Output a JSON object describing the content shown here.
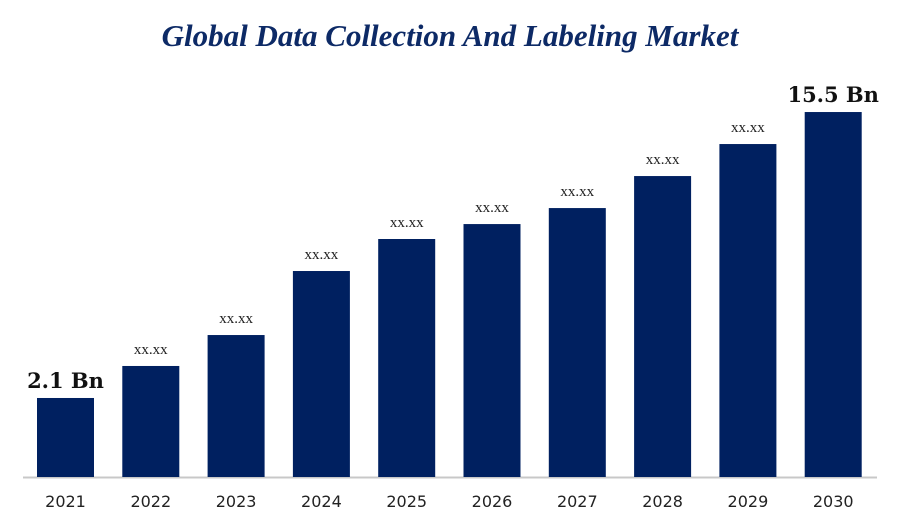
{
  "chart_data": {
    "type": "bar",
    "title": "Global Data Collection And Labeling Market",
    "categories": [
      "2021",
      "2022",
      "2023",
      "2024",
      "2025",
      "2026",
      "2027",
      "2028",
      "2029",
      "2030"
    ],
    "values": [
      2.1,
      3.6,
      5.05,
      8.05,
      9.55,
      10.25,
      11.0,
      12.5,
      14.0,
      15.5
    ],
    "data_labels": [
      "2.1 Bn",
      "xx.xx",
      "xx.xx",
      "xx.xx",
      "xx.xx",
      "xx.xx",
      "xx.xx",
      "xx.xx",
      "xx.xx",
      "15.5 Bn"
    ],
    "xlabel": "",
    "ylabel": "",
    "grid": false,
    "bar_color": "#002060"
  }
}
